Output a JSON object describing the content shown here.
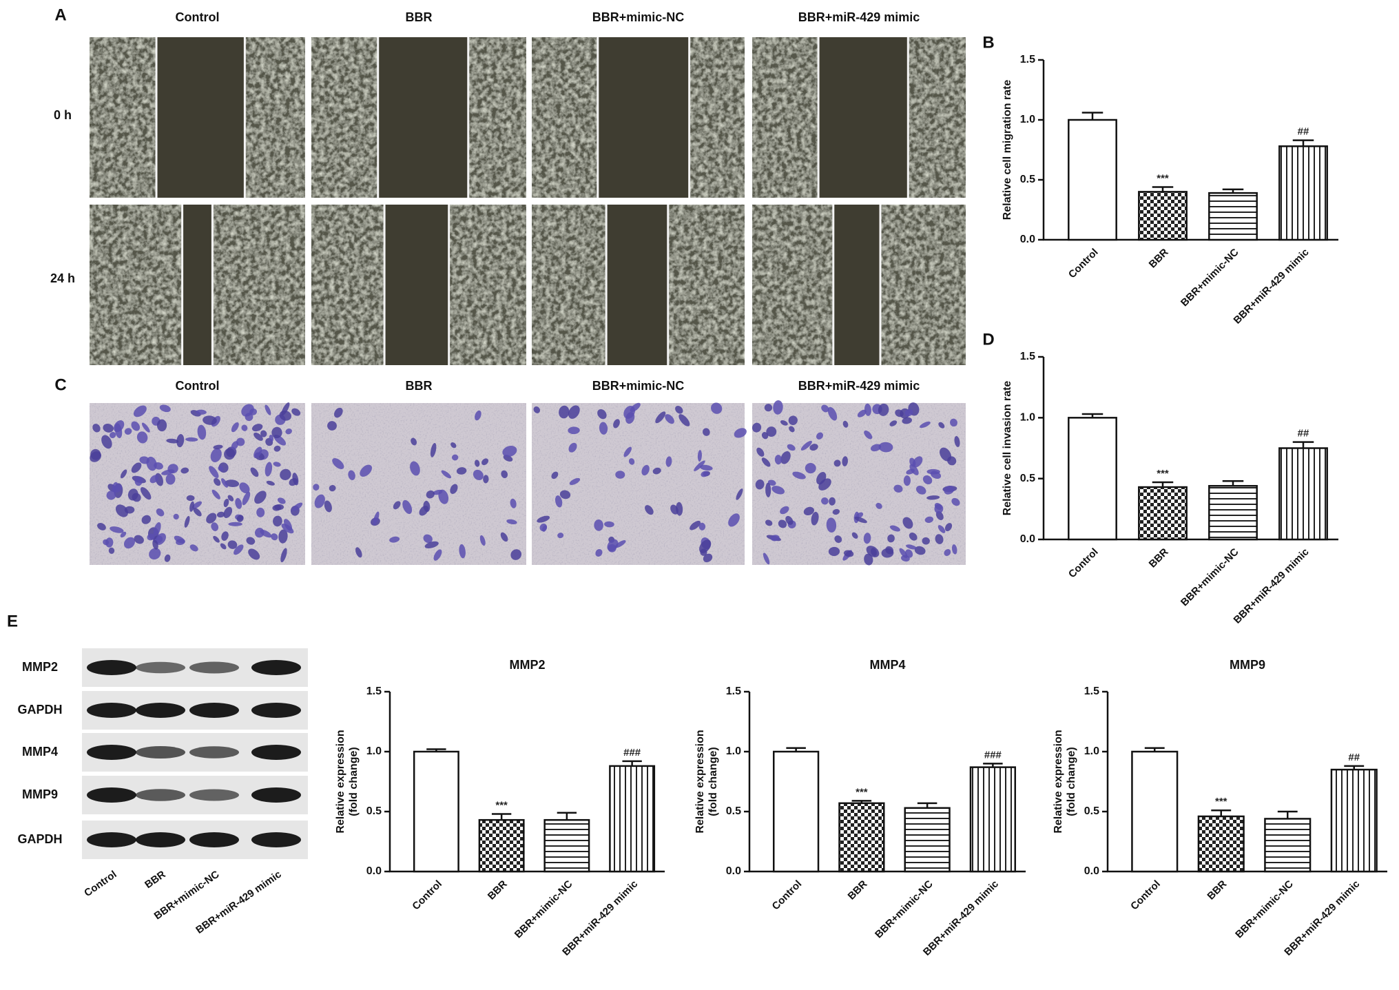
{
  "chart_data": [
    {
      "type": "bar",
      "panel": "B",
      "ylabel": [
        "Relative cell migration rate"
      ],
      "categories": [
        "Control",
        "BBR",
        "BBR+mimic-NC",
        "BBR+miR-429 mimic"
      ],
      "values": [
        1.0,
        0.4,
        0.39,
        0.78
      ],
      "errors": [
        0.06,
        0.04,
        0.03,
        0.05
      ],
      "significance": [
        null,
        "***",
        null,
        "##"
      ],
      "bar_patterns": [
        "none",
        "checker",
        "hlines",
        "vlines"
      ],
      "ylim": [
        0,
        1.5
      ],
      "yticks": [
        {
          "value": 0,
          "label": "0.0"
        },
        0.5,
        {
          "value": 1,
          "label": "1.0"
        },
        1.5
      ]
    },
    {
      "type": "bar",
      "panel": "D",
      "ylabel": [
        "Relative cell invasion rate"
      ],
      "categories": [
        "Control",
        "BBR",
        "BBR+mimic-NC",
        "BBR+miR-429 mimic"
      ],
      "values": [
        1.0,
        0.43,
        0.44,
        0.75
      ],
      "errors": [
        0.03,
        0.04,
        0.04,
        0.05
      ],
      "significance": [
        null,
        "***",
        null,
        "##"
      ],
      "bar_patterns": [
        "none",
        "checker",
        "hlines",
        "vlines"
      ],
      "ylim": [
        0,
        1.5
      ],
      "yticks": [
        {
          "value": 0,
          "label": "0.0"
        },
        0.5,
        {
          "value": 1,
          "label": "1.0"
        },
        1.5
      ]
    },
    {
      "type": "bar",
      "title": "MMP2",
      "ylabel": [
        "Relative expression",
        "(fold change)"
      ],
      "categories": [
        "Control",
        "BBR",
        "BBR+mimic-NC",
        "BBR+miR-429 mimic"
      ],
      "values": [
        1.0,
        0.43,
        0.43,
        0.88
      ],
      "errors": [
        0.02,
        0.05,
        0.06,
        0.04
      ],
      "significance": [
        null,
        "***",
        null,
        "###"
      ],
      "bar_patterns": [
        "none",
        "checker",
        "hlines",
        "vlines"
      ],
      "ylim": [
        0,
        1.5
      ],
      "yticks": [
        {
          "value": 0,
          "label": "0.0"
        },
        0.5,
        {
          "value": 1,
          "label": "1.0"
        },
        1.5
      ]
    },
    {
      "type": "bar",
      "title": "MMP4",
      "ylabel": [
        "Relative expression",
        "(fold change)"
      ],
      "categories": [
        "Control",
        "BBR",
        "BBR+mimic-NC",
        "BBR+miR-429 mimic"
      ],
      "values": [
        1.0,
        0.57,
        0.53,
        0.87
      ],
      "errors": [
        0.03,
        0.02,
        0.04,
        0.03
      ],
      "significance": [
        null,
        "***",
        null,
        "###"
      ],
      "bar_patterns": [
        "none",
        "checker",
        "hlines",
        "vlines"
      ],
      "ylim": [
        0,
        1.5
      ],
      "yticks": [
        {
          "value": 0,
          "label": "0.0"
        },
        0.5,
        {
          "value": 1,
          "label": "1.0"
        },
        1.5
      ]
    },
    {
      "type": "bar",
      "title": "MMP9",
      "ylabel": [
        "Relative expression",
        "(fold change)"
      ],
      "categories": [
        "Control",
        "BBR",
        "BBR+mimic-NC",
        "BBR+miR-429 mimic"
      ],
      "values": [
        1.0,
        0.46,
        0.44,
        0.85
      ],
      "errors": [
        0.03,
        0.05,
        0.06,
        0.03
      ],
      "significance": [
        null,
        "***",
        null,
        "##"
      ],
      "bar_patterns": [
        "none",
        "checker",
        "hlines",
        "vlines"
      ],
      "ylim": [
        0,
        1.5
      ],
      "yticks": [
        {
          "value": 0,
          "label": "0.0"
        },
        0.5,
        {
          "value": 1,
          "label": "1.0"
        },
        1.5
      ]
    }
  ],
  "wound_healing": {
    "panel": "A",
    "columns": [
      "Control",
      "BBR",
      "BBR+mimic-NC",
      "BBR+miR-429 mimic"
    ],
    "rows": [
      "0 h",
      "24 h"
    ]
  },
  "transwell": {
    "panel": "C",
    "columns": [
      "Control",
      "BBR",
      "BBR+mimic-NC",
      "BBR+miR-429 mimic"
    ]
  },
  "western_blot": {
    "panel": "E",
    "rows": [
      "MMP2",
      "GAPDH",
      "MMP4",
      "MMP9",
      "GAPDH"
    ],
    "lanes": [
      "Control",
      "BBR",
      "BBR+mimic-NC",
      "BBR+miR-429 mimic"
    ]
  }
}
